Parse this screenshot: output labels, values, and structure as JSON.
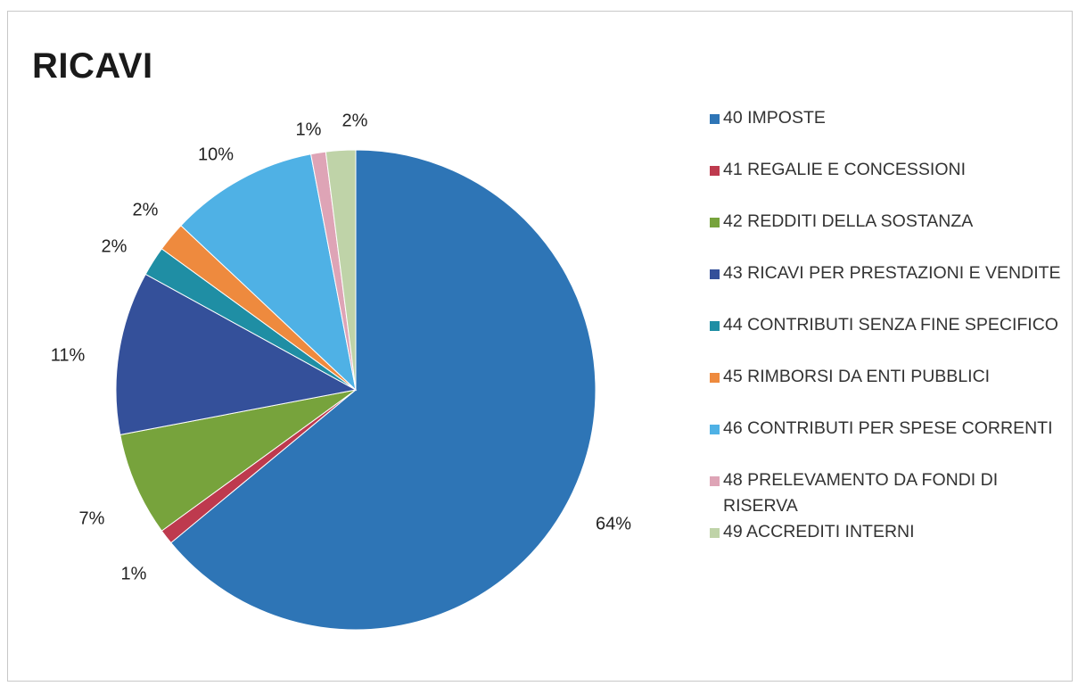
{
  "title": "RICAVI",
  "chart_data": {
    "type": "pie",
    "title": "RICAVI",
    "labels": [
      "40 IMPOSTE",
      "41 REGALIE E CONCESSIONI",
      "42 REDDITI DELLA SOSTANZA",
      "43 RICAVI PER PRESTAZIONI E VENDITE",
      "44 CONTRIBUTI SENZA FINE SPECIFICO",
      "45 RIMBORSI DA ENTI PUBBLICI",
      "46 CONTRIBUTI PER SPESE CORRENTI",
      "48 PRELEVAMENTO DA FONDI DI RISERVA",
      "49 ACCREDITI INTERNI"
    ],
    "values": [
      64,
      1,
      7,
      11,
      2,
      2,
      10,
      1,
      2
    ],
    "data_labels": [
      "64%",
      "1%",
      "7%",
      "11%",
      "2%",
      "2%",
      "10%",
      "1%",
      "2%"
    ],
    "colors": [
      "#2e75b6",
      "#be3a4e",
      "#77a33c",
      "#34509a",
      "#1f8ea4",
      "#ee8a3e",
      "#4fb1e5",
      "#dea4b6",
      "#bfd3a8"
    ],
    "legend_position": "right",
    "start_angle": "12 o'clock",
    "direction": "clockwise"
  }
}
